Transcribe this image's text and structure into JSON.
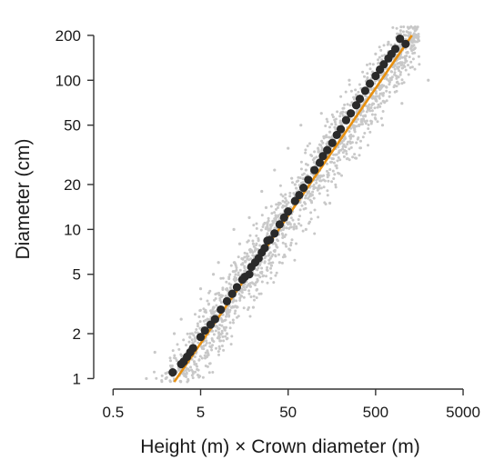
{
  "chart_data": {
    "type": "scatter",
    "xlabel": "Height (m) × Crown diameter (m)",
    "ylabel": "Diameter (cm)",
    "x_scale": "log10",
    "y_scale": "log10",
    "xlim": [
      0.3,
      6500
    ],
    "ylim": [
      0.85,
      300
    ],
    "x_ticks": [
      0.5,
      5,
      50,
      500,
      5000
    ],
    "x_tick_labels": [
      "0.5",
      "5",
      "50",
      "500",
      "5000"
    ],
    "y_ticks": [
      1,
      2,
      5,
      10,
      20,
      50,
      100,
      200
    ],
    "y_tick_labels": [
      "1",
      "2",
      "5",
      "10",
      "20",
      "50",
      "100",
      "200"
    ],
    "grid": false,
    "legend": "none",
    "series": [
      {
        "kind": "cloud",
        "color": "#c8c8c8",
        "points": [
          [
            2.0,
            1.0
          ],
          [
            3.0,
            1.3
          ],
          [
            1.2,
            1.0
          ],
          [
            4.0,
            2.0
          ],
          [
            6.0,
            2.5
          ],
          [
            10,
            4.0
          ],
          [
            15,
            5.0
          ],
          [
            20,
            8.0
          ],
          [
            30,
            10
          ],
          [
            40,
            15
          ],
          [
            60,
            20
          ],
          [
            80,
            25
          ],
          [
            100,
            30
          ],
          [
            150,
            45
          ],
          [
            200,
            60
          ],
          [
            300,
            80
          ],
          [
            400,
            100
          ],
          [
            600,
            130
          ],
          [
            900,
            170
          ],
          [
            1500,
            200
          ],
          [
            5,
            4.0
          ],
          [
            8,
            6.0
          ],
          [
            12,
            10
          ],
          [
            18,
            12
          ],
          [
            25,
            18
          ],
          [
            35,
            25
          ],
          [
            50,
            35
          ],
          [
            70,
            50
          ],
          [
            120,
            60
          ],
          [
            250,
            100
          ],
          [
            500,
            150
          ],
          [
            700,
            180
          ],
          [
            3.0,
            2.5
          ],
          [
            6.0,
            1.5
          ],
          [
            10,
            2.0
          ],
          [
            20,
            3.0
          ],
          [
            40,
            6.0
          ],
          [
            80,
            10
          ],
          [
            150,
            15
          ],
          [
            300,
            30
          ],
          [
            600,
            50
          ],
          [
            1000,
            70
          ],
          [
            2000,
            100
          ],
          [
            1.5,
            1.5
          ],
          [
            2.5,
            2.0
          ],
          [
            7,
            5.0
          ],
          [
            14,
            8.0
          ],
          [
            28,
            14
          ],
          [
            55,
            22
          ],
          [
            110,
            35
          ],
          [
            220,
            55
          ],
          [
            440,
            90
          ],
          [
            900,
            120
          ]
        ]
      },
      {
        "kind": "binned-means",
        "color": "#2a2a2a",
        "points": [
          [
            2.4,
            1.1
          ],
          [
            3.0,
            1.25
          ],
          [
            3.2,
            1.3
          ],
          [
            3.5,
            1.4
          ],
          [
            3.8,
            1.5
          ],
          [
            4.1,
            1.6
          ],
          [
            5.0,
            1.9
          ],
          [
            5.6,
            2.1
          ],
          [
            6.5,
            2.3
          ],
          [
            7.3,
            2.5
          ],
          [
            8.5,
            2.9
          ],
          [
            10,
            3.3
          ],
          [
            11.5,
            3.7
          ],
          [
            13,
            4.1
          ],
          [
            15,
            4.6
          ],
          [
            16,
            4.8
          ],
          [
            18,
            5.0
          ],
          [
            19,
            5.6
          ],
          [
            21,
            6.0
          ],
          [
            23,
            6.4
          ],
          [
            25,
            7.0
          ],
          [
            27,
            7.5
          ],
          [
            29,
            8.4
          ],
          [
            31,
            8.5
          ],
          [
            35,
            9.4
          ],
          [
            40,
            10.8
          ],
          [
            45,
            12
          ],
          [
            50,
            13.2
          ],
          [
            60,
            15.5
          ],
          [
            67,
            17
          ],
          [
            75,
            19
          ],
          [
            85,
            21.5
          ],
          [
            100,
            25
          ],
          [
            115,
            28
          ],
          [
            125,
            31
          ],
          [
            140,
            34
          ],
          [
            160,
            38
          ],
          [
            180,
            43
          ],
          [
            200,
            47
          ],
          [
            230,
            54
          ],
          [
            260,
            60
          ],
          [
            300,
            68
          ],
          [
            330,
            75
          ],
          [
            380,
            85
          ],
          [
            430,
            95
          ],
          [
            500,
            107
          ],
          [
            560,
            118
          ],
          [
            620,
            128
          ],
          [
            700,
            140
          ],
          [
            760,
            150
          ],
          [
            840,
            162
          ],
          [
            950,
            190
          ],
          [
            1100,
            175
          ]
        ]
      },
      {
        "kind": "fit-line",
        "color": "#e8900f",
        "points": [
          [
            2.5,
            0.95
          ],
          [
            1300,
            200
          ]
        ]
      }
    ]
  }
}
